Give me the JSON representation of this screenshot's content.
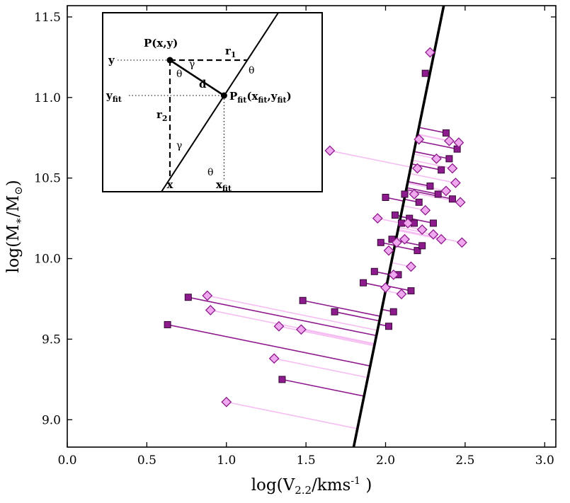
{
  "figure": {
    "background": "#ffffff"
  },
  "axes": {
    "xlabel": {
      "prefix": "log(V",
      "sub": "2.2",
      "mid": "/kms",
      "sup": "-1",
      "close": " )"
    },
    "ylabel": {
      "prefix": "log(M",
      "sub": "∗",
      "mid": "/M",
      "sub2": "⊙",
      "close": ")"
    }
  },
  "inset": {
    "p_label": "P(x,y)",
    "pfit_prefix": "P",
    "fit_sub": "fit",
    "pfit_open": "(x",
    "pfit_comma": ",y",
    "pfit_close": ")",
    "r_label": "r",
    "r1_sub": "1",
    "r2_sub": "2",
    "d_label": "d",
    "theta": "θ",
    "gamma": "γ",
    "x_label": "x",
    "y_label": "y",
    "xfit_prefix": "x",
    "yfit_prefix": "y"
  },
  "chart_data": {
    "type": "scatter",
    "title": "",
    "xlabel": "log(V_2.2 / km s^-1)",
    "ylabel": "log(M_* / M_sun)",
    "xlim": [
      0,
      3.07
    ],
    "ylim": [
      8.83,
      11.57
    ],
    "xticks": [
      0,
      0.5,
      1.0,
      1.5,
      2.0,
      2.5,
      3.0
    ],
    "xtick_labels": [
      "0.0",
      "0.5",
      "1.0",
      "1.5",
      "2.0",
      "2.5",
      "3.0"
    ],
    "yticks": [
      9.0,
      9.5,
      10.0,
      10.5,
      11.0,
      11.5
    ],
    "ytick_labels": [
      "9.0",
      "9.5",
      "10.0",
      "10.5",
      "11.0",
      "11.5"
    ],
    "grid": false,
    "legend": "none",
    "fit_line": {
      "slope": 4.84,
      "intercept": 0.12,
      "color": "#000000",
      "width": 3.6
    },
    "connectors": "perpendicular-projection-to-fit-line",
    "series": [
      {
        "name": "squares",
        "marker": "square",
        "color": "#8e1b8e",
        "edge": "#330a33",
        "line_color": "#8e1b8e",
        "points": [
          [
            0.63,
            9.59
          ],
          [
            0.76,
            9.76
          ],
          [
            1.35,
            9.25
          ],
          [
            1.48,
            9.74
          ],
          [
            1.68,
            9.67
          ],
          [
            1.86,
            9.85
          ],
          [
            1.93,
            9.92
          ],
          [
            1.97,
            10.1
          ],
          [
            2.0,
            10.38
          ],
          [
            2.02,
            9.58
          ],
          [
            2.04,
            10.12
          ],
          [
            2.05,
            9.67
          ],
          [
            2.06,
            10.27
          ],
          [
            2.08,
            9.9
          ],
          [
            2.1,
            10.22
          ],
          [
            2.12,
            10.4
          ],
          [
            2.15,
            10.25
          ],
          [
            2.16,
            9.8
          ],
          [
            2.18,
            10.22
          ],
          [
            2.2,
            10.05
          ],
          [
            2.21,
            10.35
          ],
          [
            2.23,
            10.08
          ],
          [
            2.25,
            11.15
          ],
          [
            2.28,
            10.45
          ],
          [
            2.3,
            10.22
          ],
          [
            2.33,
            10.4
          ],
          [
            2.35,
            10.55
          ],
          [
            2.38,
            10.78
          ],
          [
            2.4,
            10.62
          ],
          [
            2.42,
            10.37
          ],
          [
            2.45,
            10.68
          ]
        ]
      },
      {
        "name": "diamonds",
        "marker": "diamond",
        "color": "#f0a8ee",
        "edge": "#8e1b8e",
        "line_color": "#f6bdf2",
        "points": [
          [
            0.88,
            9.77
          ],
          [
            0.9,
            9.68
          ],
          [
            1.0,
            9.11
          ],
          [
            1.3,
            9.38
          ],
          [
            1.33,
            9.58
          ],
          [
            1.47,
            9.56
          ],
          [
            1.65,
            10.67
          ],
          [
            1.95,
            10.25
          ],
          [
            2.0,
            9.82
          ],
          [
            2.02,
            10.05
          ],
          [
            2.05,
            9.9
          ],
          [
            2.07,
            10.1
          ],
          [
            2.1,
            9.78
          ],
          [
            2.12,
            10.12
          ],
          [
            2.14,
            10.22
          ],
          [
            2.16,
            9.95
          ],
          [
            2.18,
            10.4
          ],
          [
            2.2,
            10.56
          ],
          [
            2.21,
            10.74
          ],
          [
            2.23,
            10.18
          ],
          [
            2.25,
            10.3
          ],
          [
            2.28,
            11.28
          ],
          [
            2.3,
            10.15
          ],
          [
            2.32,
            10.62
          ],
          [
            2.35,
            10.12
          ],
          [
            2.38,
            10.42
          ],
          [
            2.4,
            10.73
          ],
          [
            2.42,
            10.56
          ],
          [
            2.44,
            10.47
          ],
          [
            2.46,
            10.72
          ],
          [
            2.47,
            10.35
          ],
          [
            2.48,
            10.1
          ]
        ]
      }
    ]
  }
}
